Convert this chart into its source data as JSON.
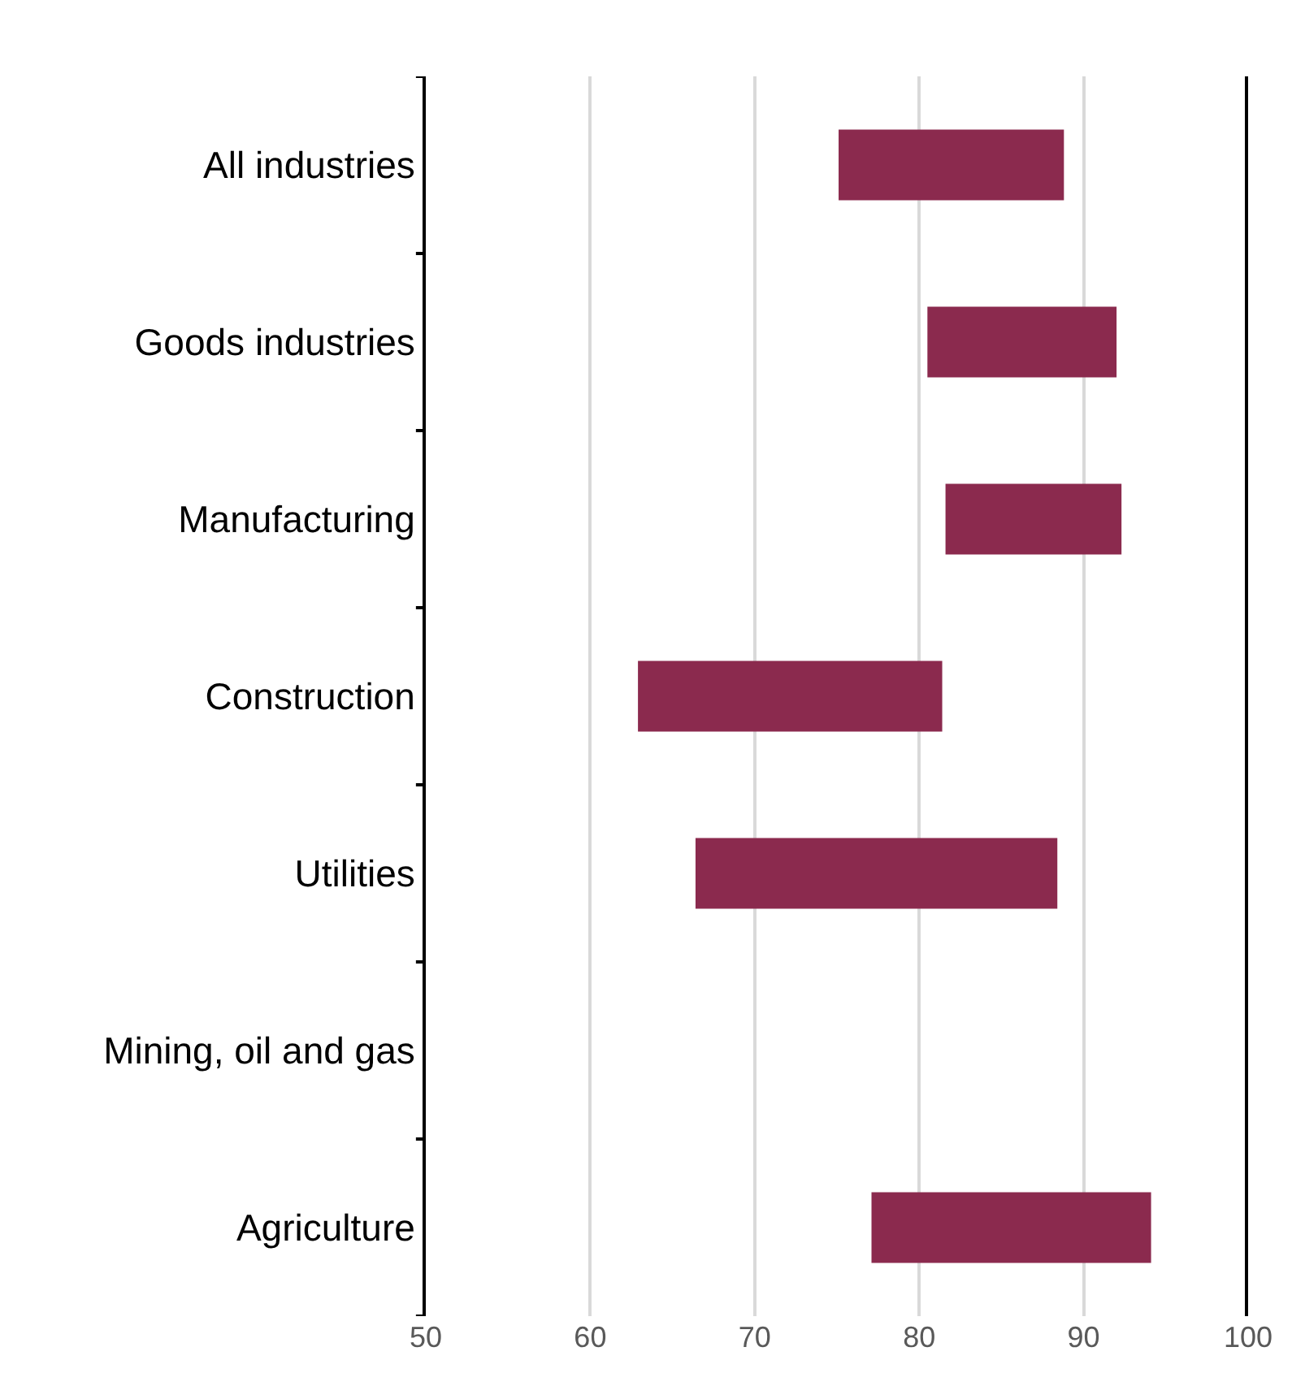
{
  "chart_data": {
    "type": "bar",
    "orientation": "horizontal",
    "categories": [
      "All industries",
      "Goods industries",
      "Manufacturing",
      "Construction",
      "Utilities",
      "Mining, oil and gas",
      "Agriculture"
    ],
    "base": [
      75.1,
      80.5,
      81.6,
      62.9,
      66.4,
      null,
      77.1
    ],
    "values": [
      13.7,
      11.5,
      10.7,
      18.5,
      22.0,
      null,
      17.0
    ],
    "color": "#8b2a4e",
    "xlim": [
      50,
      100
    ],
    "xticks": [
      50,
      60,
      70,
      80,
      90,
      100
    ],
    "grid": "x",
    "ref_lines": [
      {
        "axis": "x",
        "value": 100,
        "color": "#000000",
        "line_style": "solid"
      }
    ]
  }
}
